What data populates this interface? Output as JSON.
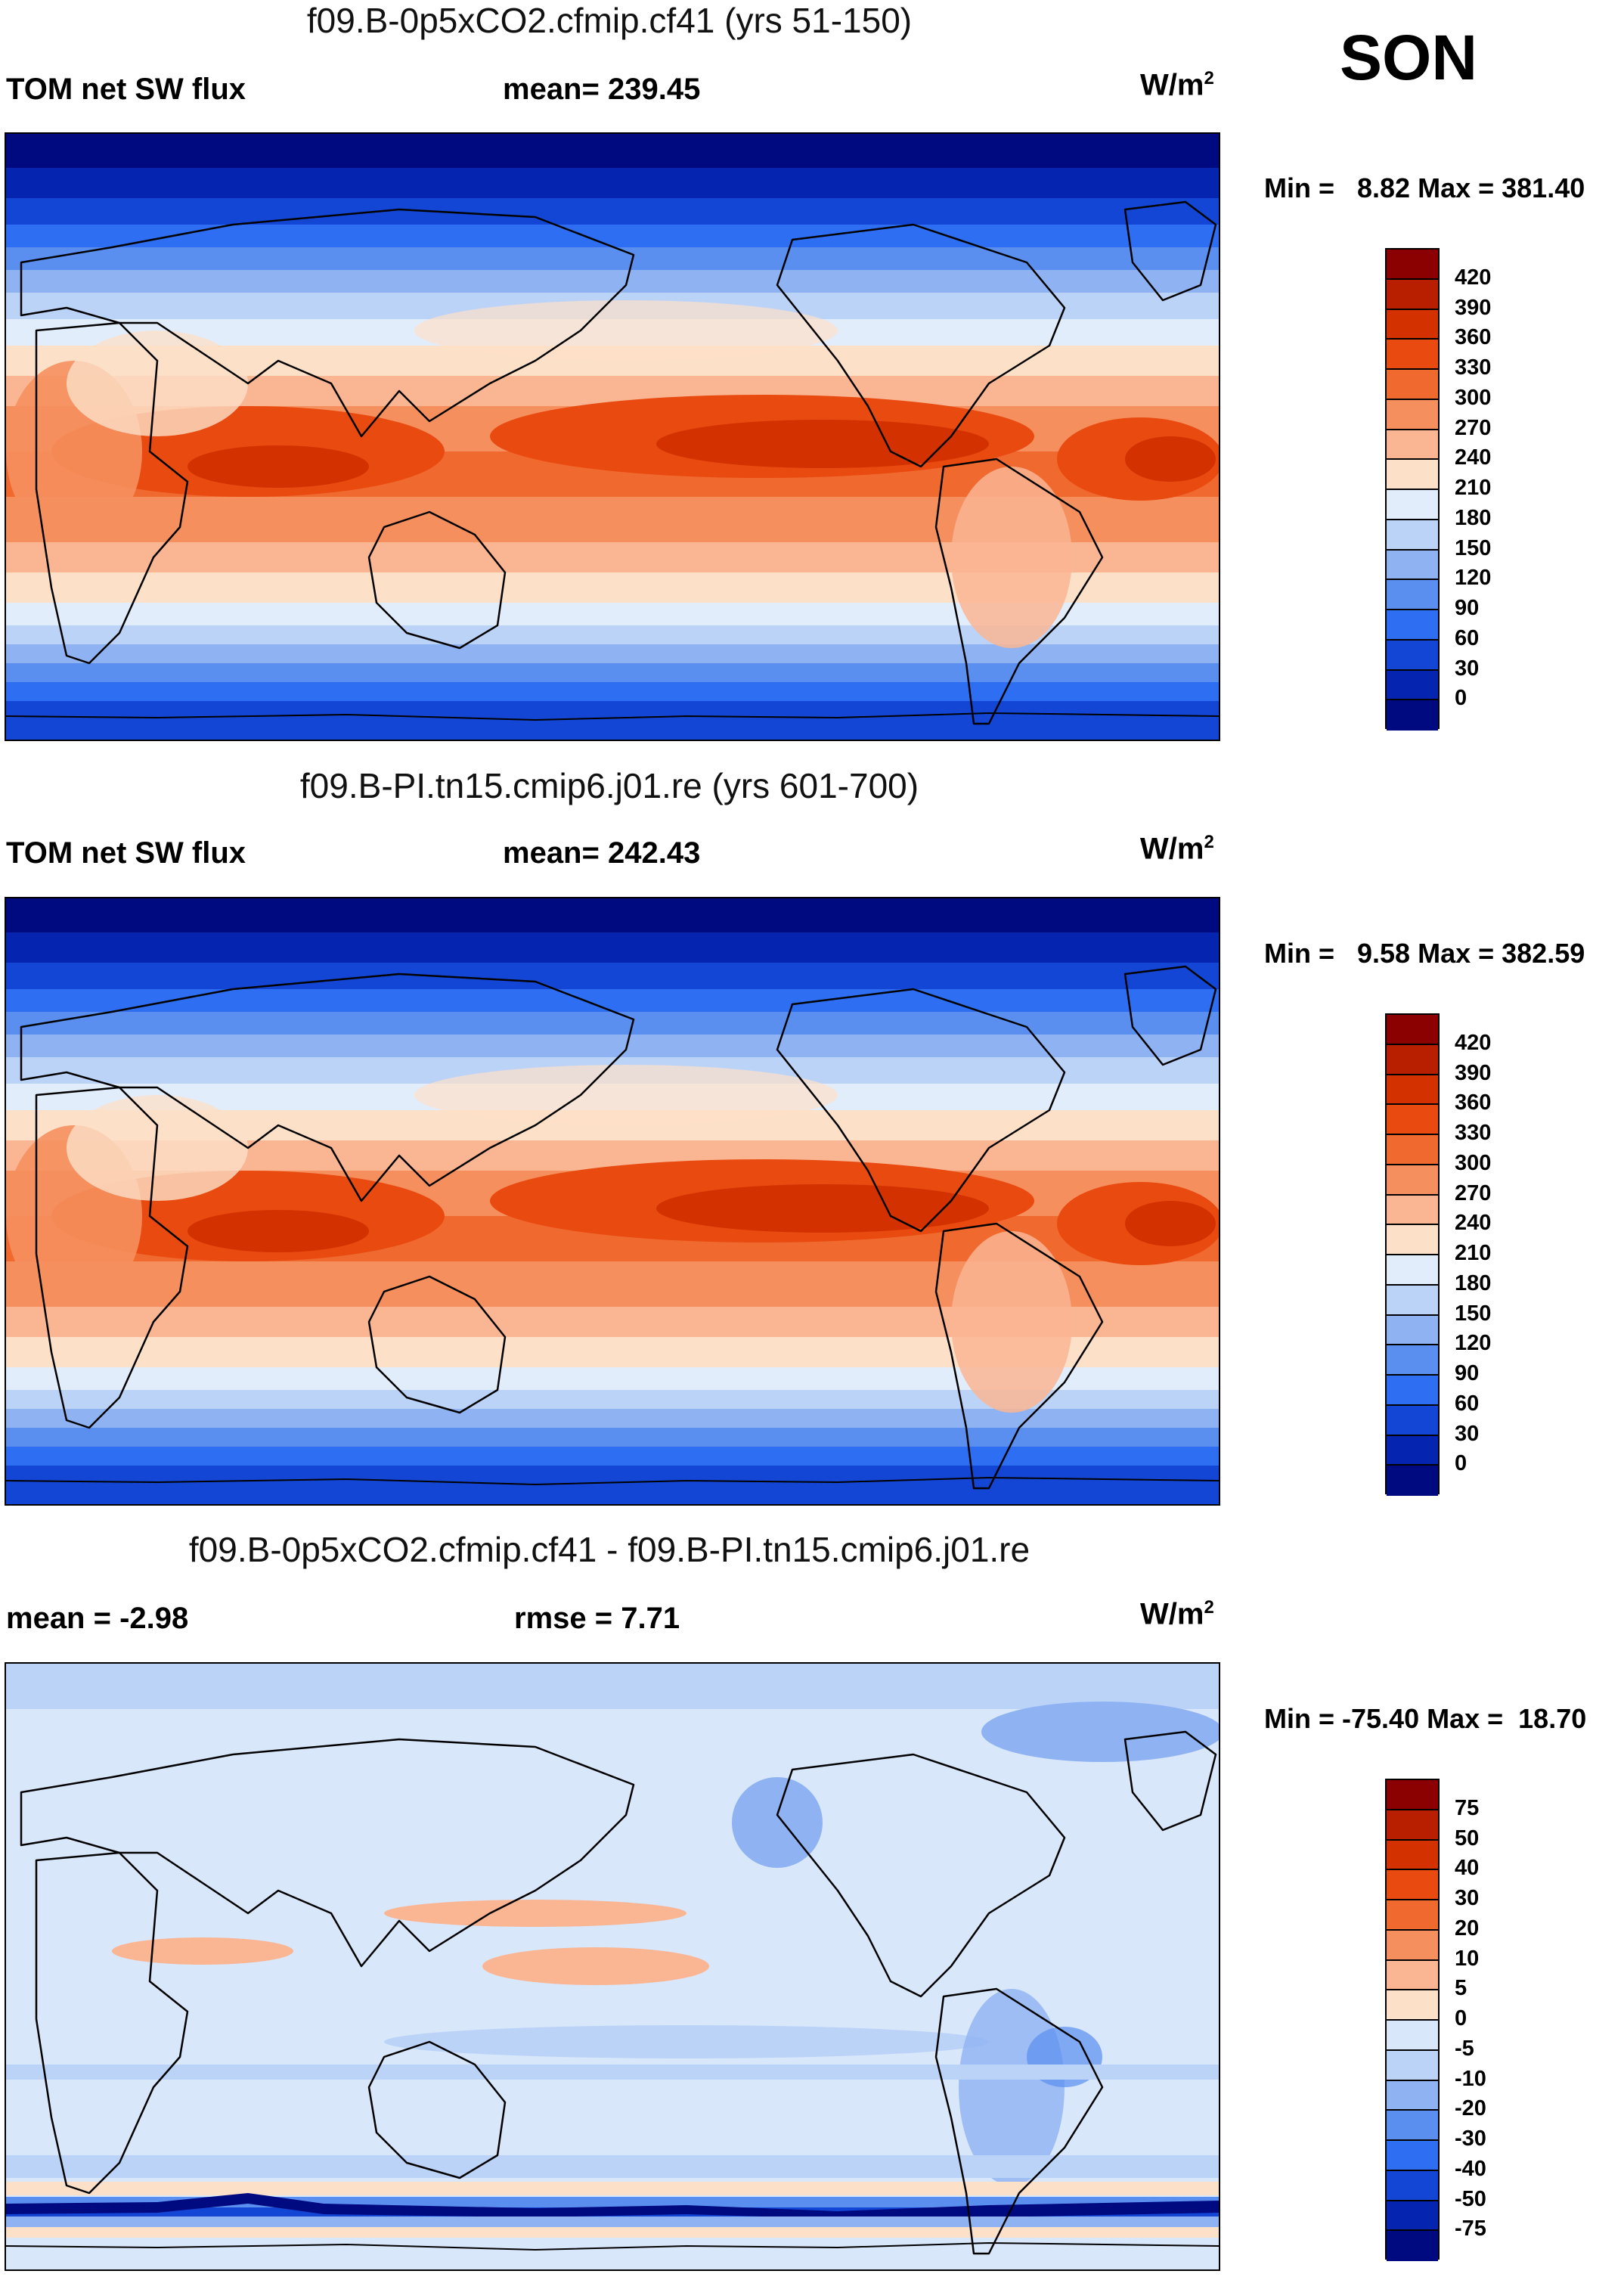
{
  "season": "SON",
  "units_base": "W/m",
  "units_exp": "2",
  "panels": [
    {
      "title": "f09.B-0p5xCO2.cfmip.cf41 (yrs 51-150)",
      "left_label": "TOM net SW flux",
      "center_label": "mean= 239.45",
      "minmax": "Min =   8.82 Max = 381.40",
      "kind": "abs"
    },
    {
      "title": "f09.B-PI.tn15.cmip6.j01.re (yrs 601-700)",
      "left_label": "TOM net SW flux",
      "center_label": "mean= 242.43",
      "minmax": "Min =   9.58 Max = 382.59",
      "kind": "abs"
    },
    {
      "title": "f09.B-0p5xCO2.cfmip.cf41 - f09.B-PI.tn15.cmip6.j01.re",
      "left_label": "mean =  -2.98",
      "center_label": "rmse =   7.71",
      "minmax": "Min = -75.40 Max =  18.70",
      "kind": "diff"
    }
  ],
  "colorbars": {
    "abs": {
      "labels": [
        "420",
        "390",
        "360",
        "330",
        "300",
        "270",
        "240",
        "210",
        "180",
        "150",
        "120",
        "90",
        "60",
        "30",
        "0"
      ],
      "colors": [
        "#8b0000",
        "#b81e00",
        "#d33200",
        "#e94a10",
        "#f06a30",
        "#f5905e",
        "#fab593",
        "#fde0c8",
        "#e2edfc",
        "#bcd3f8",
        "#8fb3f2",
        "#5a8ff0",
        "#2e6ef2",
        "#1446d6",
        "#0524b0",
        "#000a80"
      ]
    },
    "diff": {
      "labels": [
        "75",
        "50",
        "40",
        "30",
        "20",
        "10",
        "5",
        "0",
        "-5",
        "-10",
        "-20",
        "-30",
        "-40",
        "-50",
        "-75"
      ],
      "colors": [
        "#8b0000",
        "#b81e00",
        "#d33200",
        "#e94a10",
        "#f06a30",
        "#f5905e",
        "#fab593",
        "#fde0c8",
        "#d9e7fb",
        "#bcd3f8",
        "#8fb3f2",
        "#5a8ff0",
        "#2e6ef2",
        "#1446d6",
        "#0524b0",
        "#000a80"
      ]
    }
  }
}
